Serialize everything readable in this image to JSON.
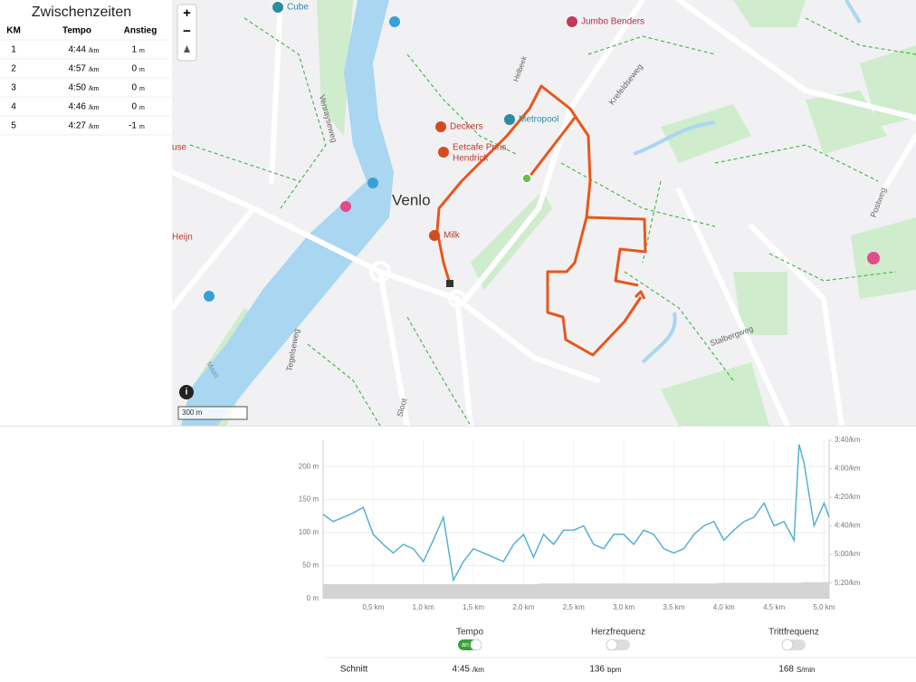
{
  "splits": {
    "title": "Zwischenzeiten",
    "columns": [
      "KM",
      "Tempo",
      "Anstieg"
    ],
    "rows": [
      {
        "km": "1",
        "tempo": "4:44",
        "tempo_unit": "/km",
        "climb": "1",
        "climb_unit": "m"
      },
      {
        "km": "2",
        "tempo": "4:57",
        "tempo_unit": "/km",
        "climb": "0",
        "climb_unit": "m"
      },
      {
        "km": "3",
        "tempo": "4:50",
        "tempo_unit": "/km",
        "climb": "0",
        "climb_unit": "m"
      },
      {
        "km": "4",
        "tempo": "4:46",
        "tempo_unit": "/km",
        "climb": "0",
        "climb_unit": "m"
      },
      {
        "km": "5",
        "tempo": "4:27",
        "tempo_unit": "/km",
        "climb": "-1",
        "climb_unit": "m"
      }
    ]
  },
  "map": {
    "zoom_in": "+",
    "zoom_out": "−",
    "scale": "300 m",
    "labels": [
      "Cube",
      "Jumbo Benders",
      "Deckers",
      "Eetcafe Prins",
      "Hendrick",
      "Metropool",
      "Venlo",
      "Milk",
      "Krefeldseweg",
      "Postweg",
      "Stalbergweg",
      "Tegelseweg",
      "Venrayseweg",
      "Maas",
      "Sloot",
      "Heijn",
      "use",
      "Helbeek"
    ]
  },
  "chart_data": {
    "type": "line",
    "x": [
      0,
      0.1,
      0.2,
      0.3,
      0.4,
      0.5,
      0.6,
      0.7,
      0.8,
      0.9,
      1.0,
      1.1,
      1.2,
      1.3,
      1.4,
      1.5,
      1.6,
      1.7,
      1.8,
      1.9,
      2.0,
      2.1,
      2.2,
      2.3,
      2.4,
      2.5,
      2.6,
      2.7,
      2.8,
      2.9,
      3.0,
      3.1,
      3.2,
      3.3,
      3.4,
      3.5,
      3.6,
      3.7,
      3.8,
      3.9,
      4.0,
      4.1,
      4.2,
      4.3,
      4.4,
      4.5,
      4.6,
      4.7,
      4.75,
      4.8,
      4.9,
      5.0,
      5.05
    ],
    "xlim": [
      0,
      5.05
    ],
    "xticks": [
      {
        "value": 0.5,
        "label": "0,5 km"
      },
      {
        "value": 1.0,
        "label": "1,0 km"
      },
      {
        "value": 1.5,
        "label": "1,5 km"
      },
      {
        "value": 2.0,
        "label": "2,0 km"
      },
      {
        "value": 2.5,
        "label": "2,5 km"
      },
      {
        "value": 3.0,
        "label": "3,0 km"
      },
      {
        "value": 3.5,
        "label": "3,5 km"
      },
      {
        "value": 4.0,
        "label": "4,0 km"
      },
      {
        "value": 4.5,
        "label": "4,5 km"
      },
      {
        "value": 5.0,
        "label": "5,0 km"
      }
    ],
    "ylim": [
      0,
      240
    ],
    "yticks": [
      {
        "value": 0,
        "label": "0 m"
      },
      {
        "value": 50,
        "label": "50 m"
      },
      {
        "value": 100,
        "label": "100 m"
      },
      {
        "value": 150,
        "label": "150 m"
      },
      {
        "value": 200,
        "label": "200 m"
      }
    ],
    "y2lim": [
      331,
      220
    ],
    "y2ticks": [
      {
        "value": 220,
        "label": "3:40/km"
      },
      {
        "value": 240,
        "label": "4:00/km"
      },
      {
        "value": 260,
        "label": "4:20/km"
      },
      {
        "value": 280,
        "label": "4:40/km"
      },
      {
        "value": 300,
        "label": "5:00/km"
      },
      {
        "value": 320,
        "label": "5:20/km"
      }
    ],
    "grid": true,
    "series": [
      {
        "type": "area",
        "color": "#d4d4d6",
        "values": [
          22,
          22,
          22,
          22,
          22,
          22,
          22,
          22,
          22,
          22,
          22,
          22,
          22,
          22,
          22,
          22,
          22,
          22,
          22,
          22,
          22,
          22,
          23,
          23,
          23,
          23,
          23,
          23,
          23,
          23,
          23,
          23,
          23,
          23,
          23,
          23,
          23,
          23,
          23,
          23,
          24,
          24,
          24,
          24,
          24,
          24,
          24,
          24,
          24,
          25,
          25,
          25,
          25
        ]
      },
      {
        "type": "line",
        "axis": "y2",
        "color": "#55b0d6",
        "values": [
          272,
          277,
          274,
          271,
          267,
          286,
          293,
          299,
          293,
          296,
          305,
          290,
          274,
          318,
          305,
          296,
          299,
          302,
          305,
          293,
          286,
          302,
          286,
          293,
          283,
          283,
          280,
          293,
          296,
          286,
          286,
          293,
          283,
          286,
          296,
          299,
          296,
          286,
          280,
          277,
          290,
          283,
          277,
          274,
          264,
          280,
          277,
          290,
          223,
          236,
          280,
          264,
          274
        ]
      }
    ]
  },
  "toggles": [
    {
      "label": "Tempo",
      "state": "an"
    },
    {
      "label": "Herzfrequenz"
    },
    {
      "label": "Trittfrequenz"
    }
  ],
  "summary": {
    "label": "Schnitt",
    "items": [
      {
        "value": "4:45",
        "unit": "/km"
      },
      {
        "value": "136",
        "unit": "bpm"
      },
      {
        "value": "168",
        "unit": "S/min"
      }
    ]
  }
}
